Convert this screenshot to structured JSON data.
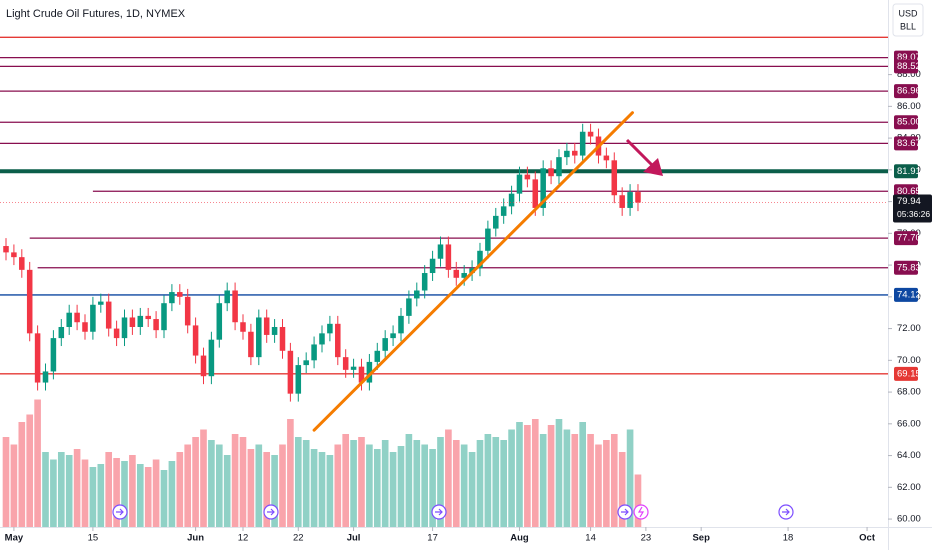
{
  "chart_data": {
    "type": "candlestick",
    "title": "Light Crude Oil Futures, 1D, NYMEX",
    "currency": "USD",
    "unit": "BLL",
    "open": [
      77.2,
      76.8,
      76.5,
      75.7,
      71.7,
      68.6,
      69.3,
      71.4,
      72.1,
      73.0,
      72.4,
      71.8,
      73.5,
      73.7,
      72.0,
      71.4,
      72.7,
      72.1,
      72.8,
      72.6,
      71.9,
      73.6,
      74.3,
      74.0,
      72.2,
      70.3,
      69.0,
      71.3,
      73.6,
      74.4,
      72.4,
      71.8,
      70.2,
      72.7,
      71.6,
      72.1,
      70.6,
      67.9,
      69.7,
      70.0,
      71.0,
      71.7,
      72.3,
      70.2,
      69.4,
      69.6,
      68.6,
      69.9,
      70.6,
      71.4,
      71.7,
      72.8,
      73.9,
      74.4,
      75.5,
      76.4,
      77.3,
      75.7,
      75.2,
      75.5,
      75.8,
      76.9,
      78.3,
      79.1,
      79.7,
      80.5,
      81.7,
      81.4,
      79.6,
      82.1,
      81.6,
      82.8,
      83.2,
      82.9,
      84.4,
      84.1,
      82.9,
      82.6,
      80.4,
      79.6,
      80.6
    ],
    "high": [
      77.7,
      77.3,
      77.0,
      76.2,
      72.2,
      69.8,
      71.9,
      72.6,
      73.5,
      73.5,
      72.9,
      74.0,
      74.2,
      74.2,
      72.5,
      73.2,
      73.2,
      73.3,
      73.3,
      73.1,
      74.1,
      74.8,
      74.8,
      74.5,
      72.7,
      70.8,
      71.8,
      74.1,
      74.9,
      74.9,
      72.9,
      72.3,
      73.2,
      73.2,
      72.6,
      72.6,
      71.1,
      70.2,
      70.5,
      71.5,
      72.2,
      72.8,
      72.8,
      70.7,
      70.1,
      70.1,
      70.4,
      71.1,
      71.9,
      72.2,
      73.3,
      74.4,
      74.9,
      76.0,
      76.9,
      77.8,
      77.8,
      76.2,
      76.0,
      76.3,
      77.4,
      78.8,
      79.6,
      80.2,
      81.0,
      82.2,
      82.2,
      81.9,
      82.6,
      82.6,
      83.3,
      83.7,
      83.7,
      84.9,
      84.9,
      84.6,
      83.4,
      83.1,
      80.9,
      81.1,
      81.1
    ],
    "low": [
      76.3,
      76.0,
      75.2,
      71.2,
      68.1,
      68.1,
      68.8,
      70.9,
      71.6,
      71.9,
      71.3,
      71.3,
      73.0,
      71.5,
      70.9,
      70.9,
      71.6,
      71.6,
      72.1,
      71.4,
      71.4,
      73.1,
      73.5,
      71.7,
      69.8,
      68.5,
      68.5,
      70.8,
      73.1,
      71.9,
      71.3,
      69.7,
      69.7,
      71.1,
      71.1,
      70.1,
      67.4,
      67.4,
      69.2,
      69.5,
      70.5,
      71.2,
      69.7,
      68.9,
      68.9,
      68.1,
      68.1,
      69.4,
      70.1,
      70.9,
      71.2,
      72.3,
      73.4,
      73.9,
      75.0,
      75.9,
      75.2,
      74.7,
      74.7,
      75.0,
      75.3,
      76.4,
      77.8,
      78.6,
      79.2,
      80.0,
      80.9,
      79.1,
      79.1,
      81.1,
      81.1,
      82.3,
      82.4,
      82.4,
      83.6,
      82.4,
      82.1,
      79.9,
      79.1,
      79.1,
      79.4
    ],
    "close": [
      76.8,
      76.5,
      75.7,
      71.7,
      68.6,
      69.3,
      71.4,
      72.1,
      73.0,
      72.4,
      71.8,
      73.5,
      73.7,
      72.0,
      71.4,
      72.7,
      72.1,
      72.8,
      72.6,
      71.9,
      73.6,
      74.3,
      74.0,
      72.2,
      70.3,
      69.0,
      71.3,
      73.6,
      74.4,
      72.4,
      71.8,
      70.2,
      72.7,
      71.6,
      72.1,
      70.6,
      67.9,
      69.7,
      70.0,
      71.0,
      71.7,
      72.3,
      70.2,
      69.4,
      69.6,
      68.6,
      69.9,
      70.6,
      71.4,
      71.7,
      72.8,
      73.9,
      74.4,
      75.5,
      76.4,
      77.3,
      75.7,
      75.2,
      75.5,
      75.8,
      76.9,
      78.3,
      79.1,
      79.7,
      80.5,
      81.7,
      81.4,
      79.6,
      82.1,
      81.6,
      82.8,
      83.2,
      82.9,
      84.4,
      84.1,
      82.9,
      82.6,
      80.4,
      79.6,
      80.6,
      79.94
    ],
    "volume": [
      60,
      55,
      70,
      75,
      85,
      50,
      45,
      50,
      48,
      52,
      45,
      40,
      42,
      50,
      46,
      44,
      48,
      42,
      40,
      45,
      38,
      44,
      50,
      55,
      60,
      65,
      58,
      55,
      48,
      62,
      60,
      52,
      55,
      50,
      48,
      55,
      72,
      60,
      58,
      52,
      50,
      48,
      55,
      62,
      58,
      60,
      55,
      52,
      58,
      50,
      54,
      62,
      58,
      55,
      52,
      60,
      65,
      58,
      55,
      50,
      58,
      62,
      60,
      58,
      65,
      70,
      68,
      72,
      62,
      68,
      72,
      65,
      62,
      70,
      62,
      55,
      58,
      62,
      50,
      65,
      35
    ],
    "volume_lim": [
      0,
      100
    ],
    "up_color": "#089981",
    "down_color": "#f23645",
    "xlim": [
      -0.76,
      111.65
    ],
    "xticks": [
      {
        "value": 1,
        "label": "May"
      },
      {
        "value": 11,
        "label": "15"
      },
      {
        "value": 24,
        "label": "Jun"
      },
      {
        "value": 30,
        "label": "12"
      },
      {
        "value": 37,
        "label": "22"
      },
      {
        "value": 44,
        "label": "Jul"
      },
      {
        "value": 54,
        "label": "17"
      },
      {
        "value": 65,
        "label": "Aug"
      },
      {
        "value": 74,
        "label": "14"
      },
      {
        "value": 81,
        "label": "23"
      },
      {
        "value": 88,
        "label": "Sep"
      },
      {
        "value": 99,
        "label": "18"
      },
      {
        "value": 109,
        "label": "Oct"
      }
    ],
    "ylim": [
      59.5,
      92.7
    ],
    "yticks": [
      {
        "value": 60,
        "label": "60.00"
      },
      {
        "value": 62,
        "label": "62.00"
      },
      {
        "value": 64,
        "label": "64.00"
      },
      {
        "value": 66,
        "label": "66.00"
      },
      {
        "value": 68,
        "label": "68.00"
      },
      {
        "value": 70,
        "label": "70.00"
      },
      {
        "value": 72,
        "label": "72.00"
      },
      {
        "value": 74,
        "label": "74.00"
      },
      {
        "value": 76,
        "label": "76.00"
      },
      {
        "value": 78,
        "label": "78.00"
      },
      {
        "value": 80,
        "label": "80.00"
      },
      {
        "value": 82,
        "label": "82.00"
      },
      {
        "value": 84,
        "label": "84.00"
      },
      {
        "value": 86,
        "label": "86.00"
      },
      {
        "value": 88,
        "label": "88.00"
      }
    ],
    "levels": [
      {
        "value": 90.35,
        "color": "#e53935"
      },
      {
        "value": 89.07,
        "label": "89.07",
        "color": "#880e4f"
      },
      {
        "value": 88.52,
        "label": "88.52",
        "color": "#880e4f"
      },
      {
        "value": 86.96,
        "label": "86.96",
        "color": "#880e4f"
      },
      {
        "value": 85.0,
        "label": "85.00",
        "color": "#880e4f"
      },
      {
        "value": 83.67,
        "label": "83.67",
        "color": "#880e4f"
      },
      {
        "value": 81.91,
        "label": "81.91",
        "color": "#0b5e4a",
        "width": 4
      },
      {
        "value": 80.65,
        "label": "80.65",
        "color": "#880e4f",
        "start": 11
      },
      {
        "value": 77.7,
        "label": "77.70",
        "color": "#880e4f",
        "start": 3
      },
      {
        "value": 75.83,
        "label": "75.83",
        "color": "#880e4f",
        "start": 4
      },
      {
        "value": 74.12,
        "label": "74.12",
        "color": "#0d47a1"
      },
      {
        "value": 69.15,
        "label": "69.15",
        "color": "#e53935"
      }
    ],
    "trendline": {
      "x": [
        39,
        79.3
      ],
      "y": [
        65.6,
        85.6
      ],
      "color": "#f57c00"
    },
    "last_price": 79.94,
    "countdown": "05:36:26"
  }
}
